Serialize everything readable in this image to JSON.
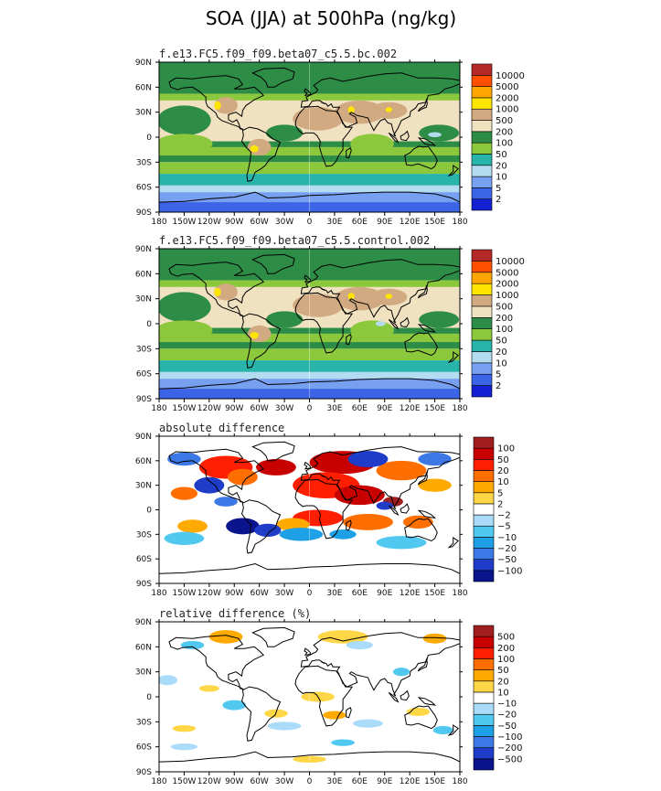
{
  "title": "SOA (JJA) at 500hPa (ng/kg)",
  "chart_data": [
    {
      "type": "heatmap",
      "panel_title": "f.e13.FC5.f09_f09.beta07_c5.5.bc.002",
      "x_ticks": [
        "180",
        "150W",
        "120W",
        "90W",
        "60W",
        "30W",
        "0",
        "30E",
        "60E",
        "90E",
        "120E",
        "150E",
        "180"
      ],
      "y_ticks": [
        "90N",
        "60N",
        "30N",
        "0",
        "30S",
        "60S",
        "90S"
      ],
      "xlim": [
        -180,
        180
      ],
      "ylim": [
        -90,
        90
      ],
      "color_levels": [
        "2",
        "5",
        "10",
        "20",
        "50",
        "100",
        "200",
        "500",
        "1000",
        "2000",
        "5000",
        "10000"
      ],
      "colors": [
        "#1420d2",
        "#3c64e6",
        "#78a0f0",
        "#b4dcf0",
        "#28b4aa",
        "#8cc83c",
        "#2d8c46",
        "#f0e1c0",
        "#d2aa82",
        "#ffe600",
        "#ffa500",
        "#ff5000",
        "#b42828"
      ]
    },
    {
      "type": "heatmap",
      "panel_title": "f.e13.FC5.f09_f09.beta07_c5.5.control.002",
      "x_ticks": [
        "180",
        "150W",
        "120W",
        "90W",
        "60W",
        "30W",
        "0",
        "30E",
        "60E",
        "90E",
        "120E",
        "150E",
        "180"
      ],
      "y_ticks": [
        "90N",
        "60N",
        "30N",
        "0",
        "30S",
        "60S",
        "90S"
      ],
      "xlim": [
        -180,
        180
      ],
      "ylim": [
        -90,
        90
      ],
      "color_levels": [
        "2",
        "5",
        "10",
        "20",
        "50",
        "100",
        "200",
        "500",
        "1000",
        "2000",
        "5000",
        "10000"
      ],
      "colors": [
        "#1420d2",
        "#3c64e6",
        "#78a0f0",
        "#b4dcf0",
        "#28b4aa",
        "#8cc83c",
        "#2d8c46",
        "#f0e1c0",
        "#d2aa82",
        "#ffe600",
        "#ffa500",
        "#ff5000",
        "#b42828"
      ]
    },
    {
      "type": "heatmap",
      "panel_title": "absolute difference",
      "x_ticks": [
        "180",
        "150W",
        "120W",
        "90W",
        "60W",
        "30W",
        "0",
        "30E",
        "60E",
        "90E",
        "120E",
        "150E",
        "180"
      ],
      "y_ticks": [
        "90N",
        "60N",
        "30N",
        "0",
        "30S",
        "60S",
        "90S"
      ],
      "xlim": [
        -180,
        180
      ],
      "ylim": [
        -90,
        90
      ],
      "color_levels": [
        "−100",
        "−50",
        "−20",
        "−10",
        "−5",
        "−2",
        "2",
        "5",
        "10",
        "20",
        "50",
        "100"
      ],
      "colors": [
        "#0a148c",
        "#1e3cc8",
        "#3c78e6",
        "#1ea0e6",
        "#50c8f0",
        "#aadcfa",
        "#ffffff",
        "#ffd746",
        "#ffaa00",
        "#ff6e00",
        "#ff1e00",
        "#c80000",
        "#a01e1e"
      ]
    },
    {
      "type": "heatmap",
      "panel_title": "relative difference (%)",
      "x_ticks": [
        "180",
        "150W",
        "120W",
        "90W",
        "60W",
        "30W",
        "0",
        "30E",
        "60E",
        "90E",
        "120E",
        "150E",
        "180"
      ],
      "y_ticks": [
        "90N",
        "60N",
        "30N",
        "0",
        "30S",
        "60S",
        "90S"
      ],
      "xlim": [
        -180,
        180
      ],
      "ylim": [
        -90,
        90
      ],
      "color_levels": [
        "−500",
        "−200",
        "−100",
        "−50",
        "−20",
        "−10",
        "10",
        "20",
        "50",
        "100",
        "200",
        "500"
      ],
      "colors": [
        "#0a148c",
        "#1e3cc8",
        "#3c78e6",
        "#1ea0e6",
        "#50c8f0",
        "#aadcfa",
        "#ffffff",
        "#ffd746",
        "#ffaa00",
        "#ff6e00",
        "#ff1e00",
        "#c80000",
        "#a01e1e"
      ]
    }
  ]
}
